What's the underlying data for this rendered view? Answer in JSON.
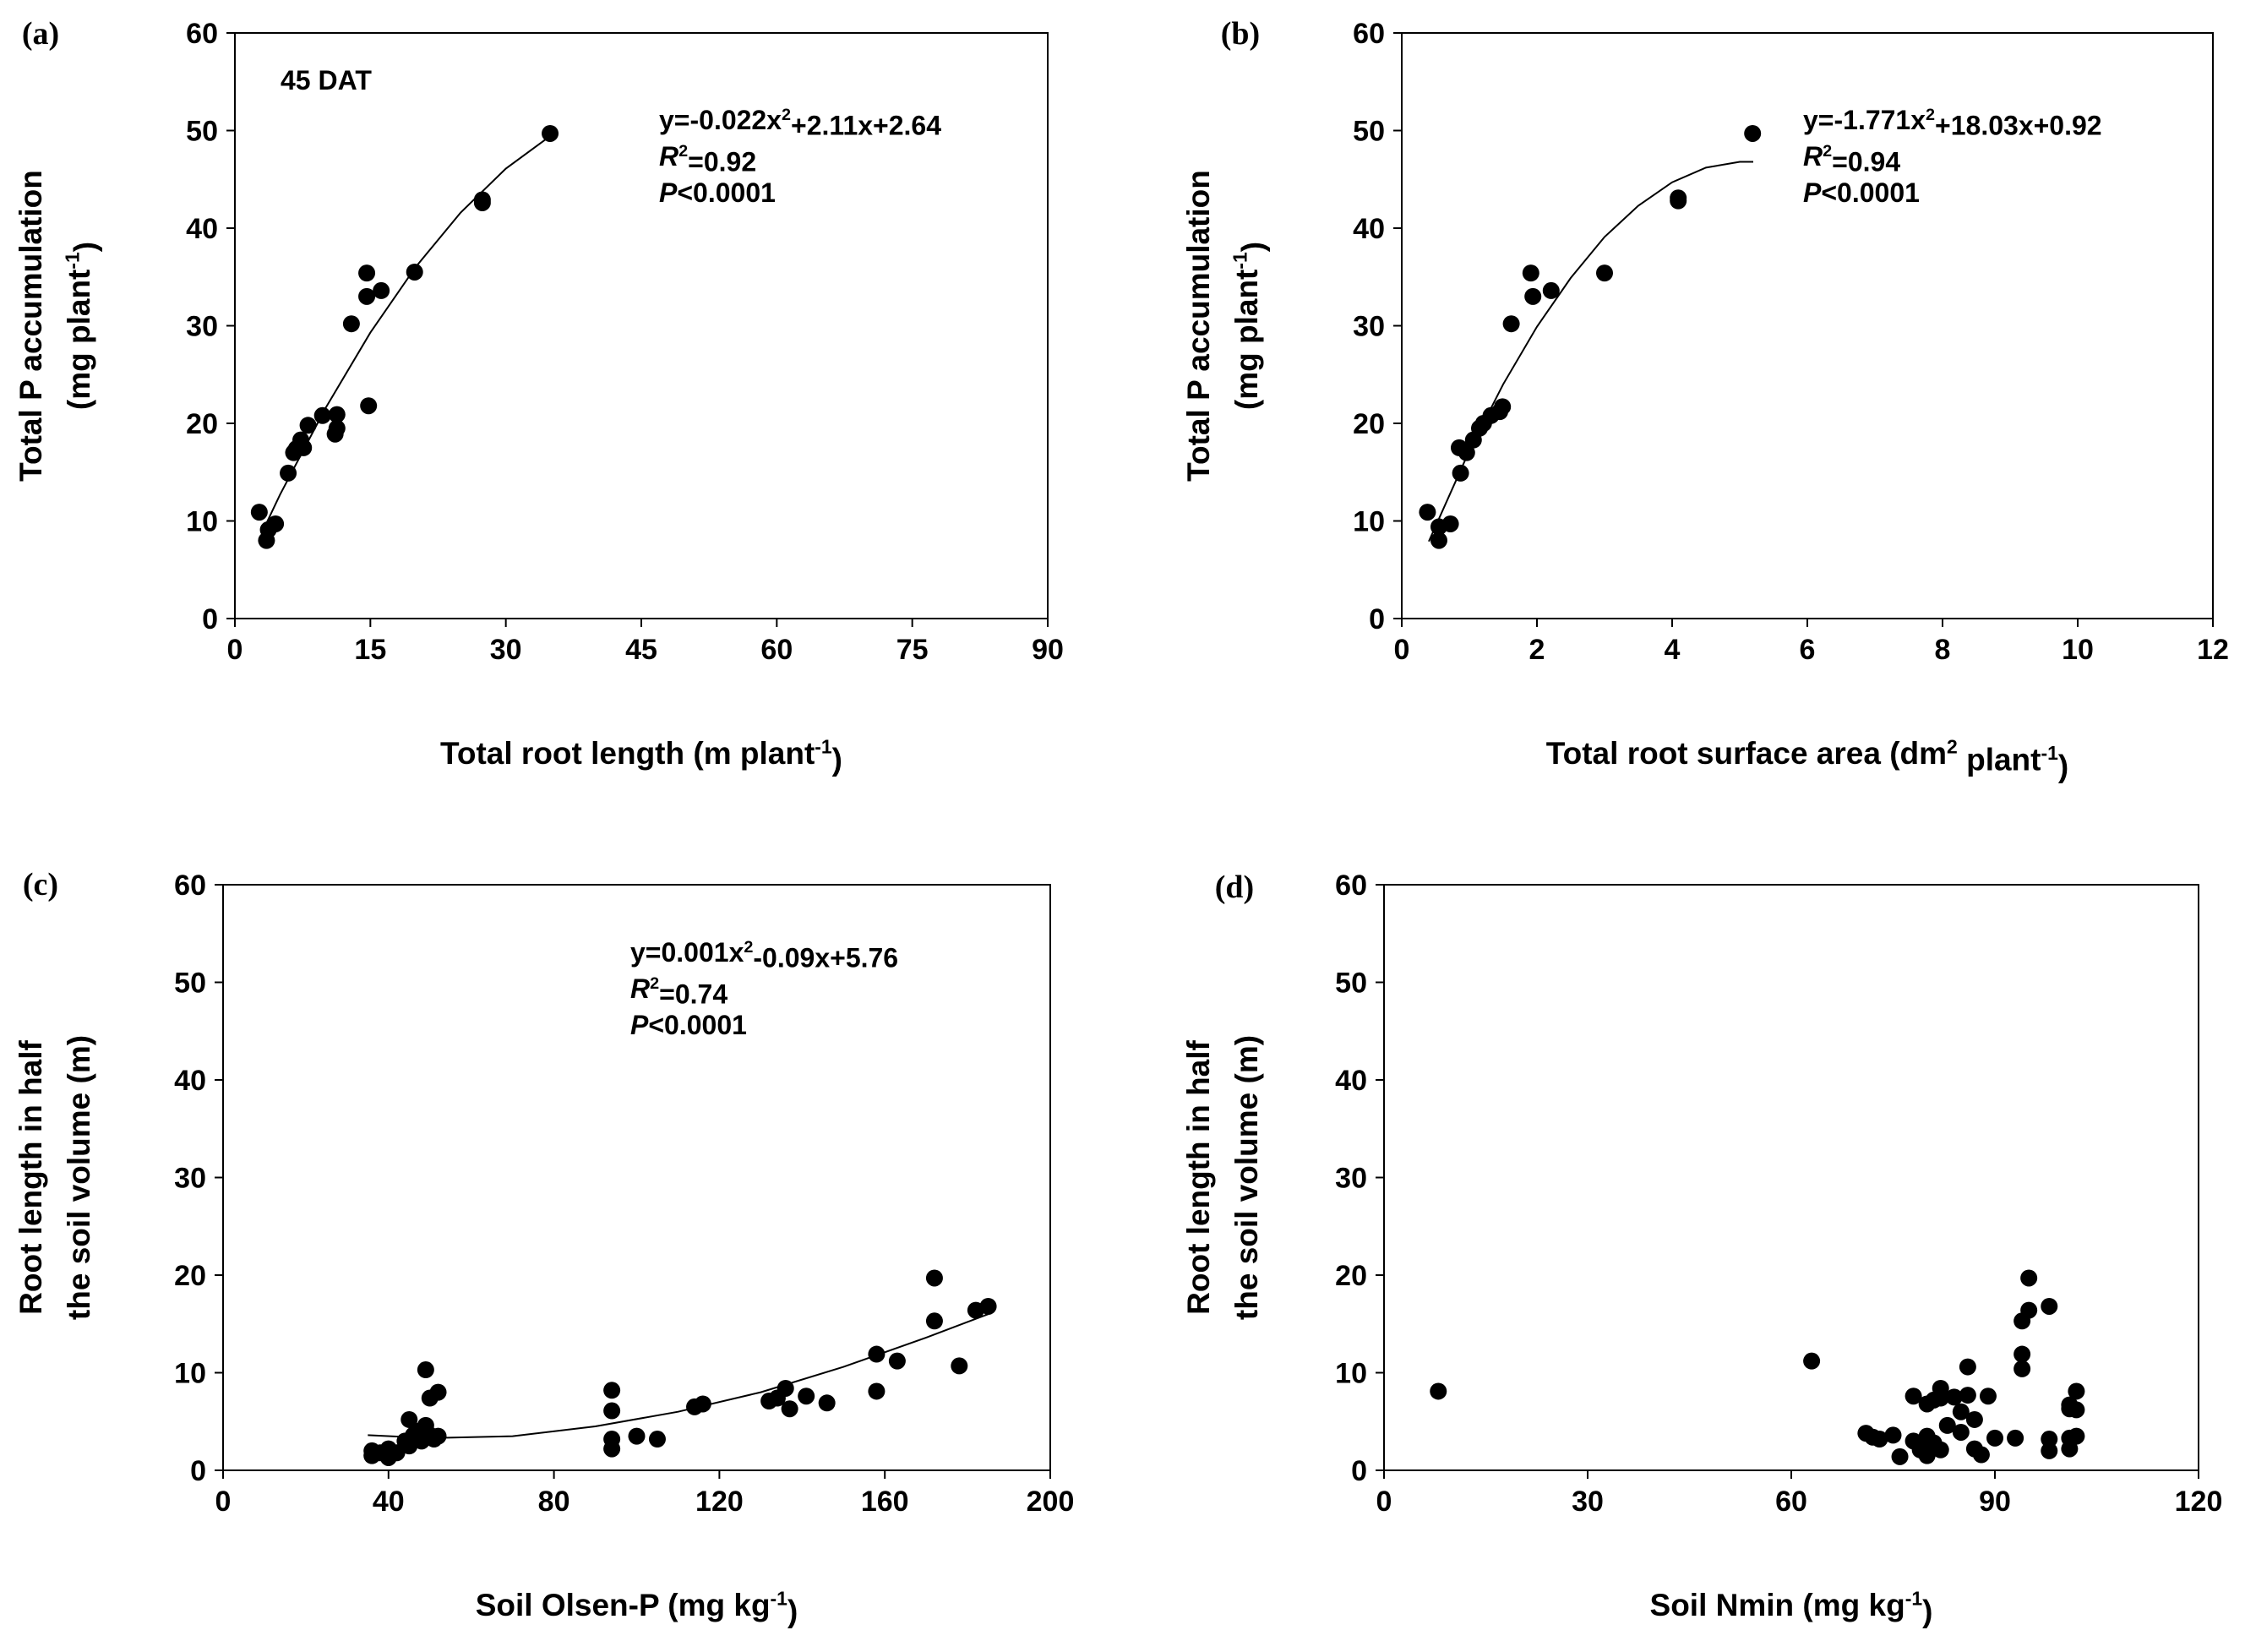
{
  "chart_data": [
    {
      "type": "scatter",
      "panel_label": "(a)",
      "note": "45 DAT",
      "color": "#000000",
      "xlabel": [
        "Total root length (m plant",
        "-1",
        ")"
      ],
      "ylabel": [
        [
          "Total P accumulation"
        ],
        [
          "(mg plant",
          "-1",
          ")"
        ]
      ],
      "xlim": [
        0,
        90
      ],
      "xticks": [
        0,
        15,
        30,
        45,
        60,
        75,
        90
      ],
      "ylim": [
        0,
        60
      ],
      "yticks": [
        0,
        10,
        20,
        30,
        40,
        50,
        60
      ],
      "x": [
        2.7,
        3.5,
        3.7,
        4.5,
        5.9,
        6.5,
        6.8,
        7.3,
        7.6,
        8.1,
        9.7,
        11.3,
        11.3,
        11.1,
        12.9,
        14.6,
        14.6,
        14.8,
        16.2,
        19.9,
        27.4,
        27.4,
        34.9
      ],
      "values": [
        10.9,
        8.0,
        9.1,
        9.7,
        14.9,
        17.0,
        17.4,
        18.3,
        17.5,
        19.8,
        20.8,
        20.9,
        19.5,
        18.9,
        30.2,
        35.4,
        33.0,
        21.8,
        33.6,
        35.5,
        42.9,
        42.6,
        49.7
      ],
      "fit": {
        "x": [
          3,
          5,
          10,
          15,
          20,
          25,
          30,
          35
        ],
        "values": [
          8.8,
          12.7,
          21.5,
          29.3,
          36.0,
          41.6,
          46.1,
          49.5
        ]
      },
      "equation": [
        "y=-0.022x",
        "2",
        "+2.11x+2.64"
      ],
      "r2": [
        "R",
        "2",
        "=0.92"
      ],
      "p": [
        "P",
        "<0.0001"
      ]
    },
    {
      "type": "scatter",
      "panel_label": "(b)",
      "color": "#000000",
      "xlabel": [
        "Total root surface area (dm",
        "2",
        " plant",
        "-1",
        ")"
      ],
      "ylabel": [
        [
          "Total P accumulation"
        ],
        [
          "(mg plant",
          "-1",
          ")"
        ]
      ],
      "xlim": [
        0,
        12
      ],
      "xticks": [
        0,
        2,
        4,
        6,
        8,
        10,
        12
      ],
      "ylim": [
        0,
        60
      ],
      "yticks": [
        0,
        10,
        20,
        30,
        40,
        50,
        60
      ],
      "x": [
        0.38,
        0.55,
        0.55,
        0.72,
        0.85,
        0.87,
        0.96,
        1.06,
        1.15,
        1.21,
        1.32,
        1.45,
        1.49,
        1.62,
        1.91,
        1.94,
        2.21,
        3.0,
        4.09,
        4.09,
        5.19
      ],
      "values": [
        10.9,
        8.0,
        9.4,
        9.7,
        17.5,
        14.9,
        17.0,
        18.3,
        19.5,
        20.0,
        20.8,
        21.2,
        21.7,
        30.2,
        35.4,
        33.0,
        33.6,
        35.4,
        42.8,
        43.1,
        49.7
      ],
      "fit": {
        "x": [
          0.4,
          1,
          1.5,
          2,
          2.5,
          3,
          3.5,
          4,
          4.5,
          5,
          5.2
        ],
        "values": [
          7.9,
          17.2,
          24.0,
          29.9,
          34.9,
          39.1,
          42.3,
          44.7,
          46.2,
          46.8,
          46.8
        ]
      },
      "equation": [
        "y=-1.771x",
        "2",
        "+18.03x+0.92"
      ],
      "r2": [
        "R",
        "2",
        "=0.94"
      ],
      "p": [
        "P",
        "<0.0001"
      ]
    },
    {
      "type": "scatter",
      "panel_label": "(c)",
      "color": "#000000",
      "xlabel": [
        "Soil Olsen-P (mg kg",
        "-1",
        ")"
      ],
      "ylabel": [
        [
          "Root length in half"
        ],
        [
          "the soil volume (m)"
        ]
      ],
      "xlim": [
        0,
        200
      ],
      "xticks": [
        0,
        40,
        80,
        120,
        160,
        200
      ],
      "ylim": [
        0,
        60
      ],
      "yticks": [
        0,
        10,
        20,
        30,
        40,
        50,
        60
      ],
      "x": [
        36,
        36,
        38,
        40,
        40,
        42,
        44,
        45,
        45,
        46,
        47,
        48,
        49,
        49,
        50,
        50,
        51,
        52,
        52,
        94,
        94,
        94,
        94,
        100,
        105,
        114,
        116,
        132,
        134,
        136,
        137,
        141,
        146,
        158,
        158,
        163,
        172,
        172,
        178,
        182,
        185
      ],
      "values": [
        1.5,
        2.0,
        1.8,
        1.3,
        2.2,
        1.8,
        3.0,
        5.2,
        2.5,
        3.6,
        4.0,
        3.0,
        4.6,
        10.3,
        3.6,
        7.4,
        3.2,
        8.0,
        3.5,
        8.2,
        6.1,
        3.2,
        2.2,
        3.5,
        3.2,
        6.5,
        6.8,
        7.1,
        7.4,
        8.4,
        6.3,
        7.6,
        6.9,
        11.9,
        8.1,
        11.2,
        19.7,
        15.3,
        10.7,
        16.4,
        16.8
      ],
      "fit": {
        "x": [
          35,
          50,
          70,
          90,
          110,
          130,
          150,
          170,
          185
        ],
        "values": [
          3.6,
          3.3,
          3.5,
          4.5,
          6.0,
          8.0,
          10.6,
          13.6,
          16.0
        ]
      },
      "equation": [
        "y=0.001x",
        "2",
        "-0.09x+5.76"
      ],
      "r2": [
        "R",
        "2",
        "=0.74"
      ],
      "p": [
        "P",
        "<0.0001"
      ]
    },
    {
      "type": "scatter",
      "panel_label": "(d)",
      "color": "#000000",
      "xlabel": [
        "Soil Nmin (mg kg",
        "-1",
        ")"
      ],
      "ylabel": [
        [
          "Root length in half"
        ],
        [
          "the soil volume (m)"
        ]
      ],
      "xlim": [
        0,
        120
      ],
      "xticks": [
        0,
        30,
        60,
        90,
        120
      ],
      "ylim": [
        0,
        60
      ],
      "yticks": [
        0,
        10,
        20,
        30,
        40,
        50,
        60
      ],
      "x": [
        8,
        63,
        71,
        72,
        73,
        75,
        76,
        78,
        78,
        79,
        80,
        80,
        80,
        81,
        81,
        82,
        82,
        82,
        83,
        84,
        85,
        85,
        86,
        86,
        87,
        87,
        88,
        89,
        90,
        93,
        94,
        94,
        94,
        95,
        95,
        98,
        98,
        98,
        101,
        101,
        101,
        101,
        102,
        102,
        102
      ],
      "values": [
        8.1,
        11.2,
        3.8,
        3.4,
        3.2,
        3.6,
        1.4,
        3.0,
        7.6,
        2.1,
        1.5,
        3.5,
        6.8,
        2.8,
        7.2,
        2.1,
        7.4,
        8.4,
        4.6,
        7.5,
        6.0,
        3.9,
        7.7,
        10.6,
        5.2,
        2.2,
        1.6,
        7.6,
        3.3,
        3.3,
        11.9,
        10.4,
        15.3,
        19.7,
        16.4,
        16.8,
        3.2,
        2.0,
        2.2,
        3.3,
        6.3,
        6.7,
        8.1,
        6.2,
        3.5
      ]
    }
  ]
}
